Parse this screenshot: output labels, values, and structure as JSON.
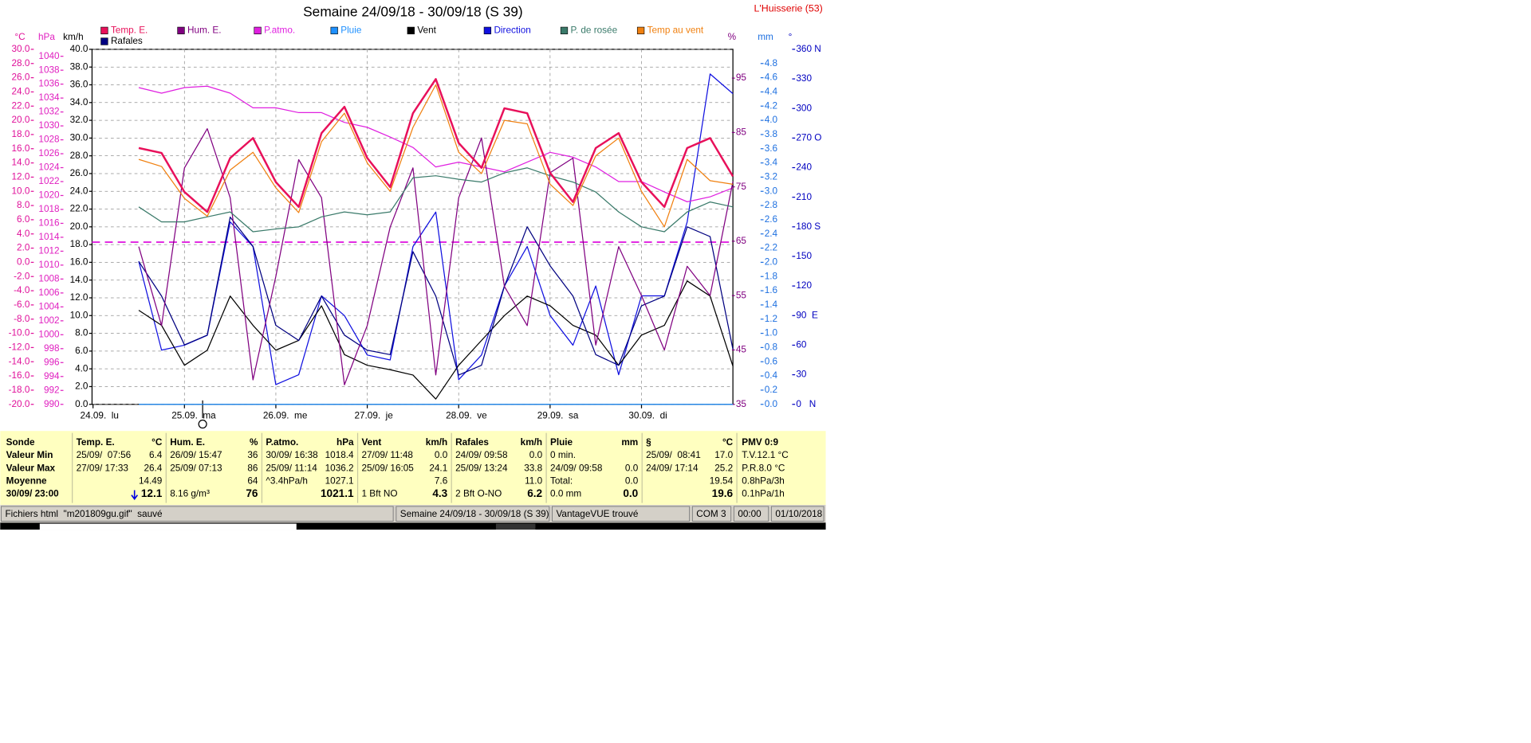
{
  "header": {
    "title": "Semaine 24/09/18 - 30/09/18 (S 39)",
    "station": "L'Huisserie (53)"
  },
  "chart_data": {
    "type": "line",
    "categories": [
      "24.09.  lu",
      null,
      null,
      null,
      "25.09.  ma",
      null,
      null,
      null,
      "26.09.  me",
      null,
      null,
      null,
      "27.09.  je",
      null,
      null,
      null,
      "28.09.  ve",
      null,
      null,
      null,
      "29.09.  sa",
      null,
      null,
      null,
      "30.09.  di",
      null,
      null,
      null,
      null
    ],
    "grid": true,
    "axes": {
      "temp": {
        "label": "°C",
        "color": "#e0109a",
        "lim": [
          -20,
          30
        ],
        "ticks": [
          {
            "value": -20,
            "label": "-20.0"
          },
          {
            "value": -18,
            "label": "-18.0"
          },
          {
            "value": -16,
            "label": "-16.0"
          },
          {
            "value": -14,
            "label": "-14.0"
          },
          {
            "value": -12,
            "label": "-12.0"
          },
          {
            "value": -10,
            "label": "-10.0"
          },
          {
            "value": -8,
            "label": "-8.0"
          },
          {
            "value": -6,
            "label": "-6.0"
          },
          {
            "value": -4,
            "label": "-4.0"
          },
          {
            "value": -2,
            "label": "-2.0"
          },
          {
            "value": 0,
            "label": "0.0"
          },
          {
            "value": 2,
            "label": "2.0"
          },
          {
            "value": 4,
            "label": "4.0"
          },
          {
            "value": 6,
            "label": "6.0"
          },
          {
            "value": 8,
            "label": "8.0"
          },
          {
            "value": 10,
            "label": "10.0"
          },
          {
            "value": 12,
            "label": "12.0"
          },
          {
            "value": 14,
            "label": "14.0"
          },
          {
            "value": 16,
            "label": "16.0"
          },
          {
            "value": 18,
            "label": "18.0"
          },
          {
            "value": 20,
            "label": "20.0"
          },
          {
            "value": 22,
            "label": "22.0"
          },
          {
            "value": 24,
            "label": "24.0"
          },
          {
            "value": 26,
            "label": "26.0"
          },
          {
            "value": 28,
            "label": "28.0"
          },
          {
            "value": 30,
            "label": "30.0"
          }
        ]
      },
      "press": {
        "label": "hPa",
        "color": "#e020c0",
        "lim": [
          990,
          1041
        ],
        "ticks": [
          990,
          992,
          994,
          996,
          998,
          1000,
          1002,
          1004,
          1006,
          1008,
          1010,
          1012,
          1014,
          1016,
          1018,
          1020,
          1022,
          1024,
          1026,
          1028,
          1030,
          1032,
          1034,
          1036,
          1038,
          1040
        ]
      },
      "wind": {
        "label": "km/h",
        "color": "#000000",
        "lim": [
          0,
          40
        ],
        "ticks": [
          {
            "value": 0,
            "label": "0.0"
          },
          {
            "value": 2,
            "label": "2.0"
          },
          {
            "value": 4,
            "label": "4.0"
          },
          {
            "value": 6,
            "label": "6.0"
          },
          {
            "value": 8,
            "label": "8.0"
          },
          {
            "value": 10,
            "label": "10.0"
          },
          {
            "value": 12,
            "label": "12.0"
          },
          {
            "value": 14,
            "label": "14.0"
          },
          {
            "value": 16,
            "label": "16.0"
          },
          {
            "value": 18,
            "label": "18.0"
          },
          {
            "value": 20,
            "label": "20.0"
          },
          {
            "value": 22,
            "label": "22.0"
          },
          {
            "value": 24,
            "label": "24.0"
          },
          {
            "value": 26,
            "label": "26.0"
          },
          {
            "value": 28,
            "label": "28.0"
          },
          {
            "value": 30,
            "label": "30.0"
          },
          {
            "value": 32,
            "label": "32.0"
          },
          {
            "value": 34,
            "label": "34.0"
          },
          {
            "value": 36,
            "label": "36.0"
          },
          {
            "value": 38,
            "label": "38.0"
          },
          {
            "value": 40,
            "label": "40.0"
          }
        ]
      },
      "hum": {
        "label": "%",
        "color": "#800080",
        "lim": [
          35,
          100.3
        ],
        "ticks": [
          35,
          45,
          55,
          65,
          75,
          85,
          95
        ]
      },
      "rain": {
        "label": "mm",
        "color": "#1e70e0",
        "lim": [
          0,
          5
        ],
        "ticks": [
          {
            "value": 0,
            "label": "0.0"
          },
          {
            "value": 0.2,
            "label": "0.2"
          },
          {
            "value": 0.4,
            "label": "0.4"
          },
          {
            "value": 0.6,
            "label": "0.6"
          },
          {
            "value": 0.8,
            "label": "0.8"
          },
          {
            "value": 1,
            "label": "1.0"
          },
          {
            "value": 1.2,
            "label": "1.2"
          },
          {
            "value": 1.4,
            "label": "1.4"
          },
          {
            "value": 1.6,
            "label": "1.6"
          },
          {
            "value": 1.8,
            "label": "1.8"
          },
          {
            "value": 2,
            "label": "2.0"
          },
          {
            "value": 2.2,
            "label": "2.2"
          },
          {
            "value": 2.4,
            "label": "2.4"
          },
          {
            "value": 2.6,
            "label": "2.6"
          },
          {
            "value": 2.8,
            "label": "2.8"
          },
          {
            "value": 3,
            "label": "3.0"
          },
          {
            "value": 3.2,
            "label": "3.2"
          },
          {
            "value": 3.4,
            "label": "3.4"
          },
          {
            "value": 3.6,
            "label": "3.6"
          },
          {
            "value": 3.8,
            "label": "3.8"
          },
          {
            "value": 4,
            "label": "4.0"
          },
          {
            "value": 4.2,
            "label": "4.2"
          },
          {
            "value": 4.4,
            "label": "4.4"
          },
          {
            "value": 4.6,
            "label": "4.6"
          },
          {
            "value": 4.8,
            "label": "4.8"
          }
        ]
      },
      "dir": {
        "label": "°",
        "color": "#0000c0",
        "lim": [
          0,
          360
        ],
        "ticks": [
          {
            "value": 0,
            "label": "0   N"
          },
          30,
          60,
          {
            "value": 90,
            "label": "90  E"
          },
          120,
          150,
          {
            "value": 180,
            "label": "180 S"
          },
          210,
          240,
          {
            "value": 270,
            "label": "270 O"
          },
          300,
          330,
          {
            "value": 360,
            "label": "360 N"
          }
        ]
      }
    },
    "series": [
      {
        "name": "Temp. E.",
        "color": "#e8105a",
        "axis": "temp",
        "values": [
          null,
          null,
          16.1,
          15.4,
          9.9,
          7.1,
          14.7,
          17.5,
          11.3,
          7.8,
          18.2,
          21.9,
          14.7,
          10.6,
          21,
          25.8,
          16.8,
          13.3,
          21.7,
          21,
          12.6,
          8.5,
          16.1,
          18.2,
          11.3,
          7.8,
          16.1,
          17.5,
          12.1
        ]
      },
      {
        "name": "Hum. E.",
        "color": "#800080",
        "axis": "hum",
        "values": [
          null,
          null,
          64,
          49.5,
          78.5,
          85.7,
          73,
          39.5,
          58.5,
          80,
          73,
          38.6,
          49.5,
          67.6,
          78.5,
          40.4,
          73,
          84,
          56.7,
          49.5,
          77.6,
          80.3,
          45.9,
          64,
          55,
          45,
          60.4,
          55,
          76
        ]
      },
      {
        "name": "P.atmo.",
        "color": "#e020e0",
        "axis": "press",
        "values": [
          null,
          null,
          1035.5,
          1034.7,
          1035.5,
          1035.7,
          1034.7,
          1032.6,
          1032.6,
          1031.9,
          1031.9,
          1030.5,
          1029.8,
          1028.4,
          1026.9,
          1024.1,
          1024.8,
          1024.1,
          1023.4,
          1024.8,
          1026.2,
          1025.5,
          1024.1,
          1022,
          1022,
          1020.5,
          1019.1,
          1019.8,
          1021.1
        ]
      },
      {
        "name": "Pluie",
        "color": "#1e90ff",
        "axis": "rain",
        "values": [
          null,
          null,
          0,
          0,
          0,
          0,
          0,
          0,
          0,
          0,
          0,
          0,
          0,
          0,
          0,
          0,
          0,
          0,
          0,
          0,
          0,
          0,
          0,
          0,
          0,
          0,
          0,
          0,
          0
        ]
      },
      {
        "name": "Vent",
        "color": "#000000",
        "axis": "wind",
        "values": [
          null,
          null,
          10.6,
          8.9,
          4.4,
          6.1,
          12.2,
          8.9,
          6.1,
          7.2,
          11.1,
          5.6,
          4.4,
          3.9,
          3.3,
          0.6,
          4.4,
          7.2,
          10,
          12.2,
          11.1,
          8.9,
          7.8,
          4.4,
          7.8,
          8.9,
          13.9,
          12.2,
          4.3
        ]
      },
      {
        "name": "Direction",
        "color": "#1010e0",
        "axis": "dir",
        "values": [
          null,
          null,
          145,
          55,
          60,
          70,
          185,
          160,
          20,
          30,
          110,
          90,
          50,
          45,
          160,
          195,
          25,
          50,
          120,
          160,
          90,
          60,
          120,
          30,
          110,
          110,
          185,
          335,
          315
        ]
      },
      {
        "name": "P. de rosée",
        "color": "#3a7a6a",
        "axis": "temp",
        "values": [
          null,
          null,
          7.8,
          5.7,
          5.7,
          6.4,
          7.1,
          4.3,
          4.7,
          5,
          6.4,
          7.1,
          6.7,
          7.1,
          11.9,
          12.2,
          11.7,
          11.3,
          12.6,
          13.3,
          12.2,
          11.3,
          9.9,
          7.1,
          5,
          4.3,
          7.1,
          8.5,
          7.8
        ]
      },
      {
        "name": "Temp au vent",
        "color": "#f08010",
        "axis": "temp",
        "values": [
          null,
          null,
          14.5,
          13.5,
          9,
          6.5,
          13,
          15.5,
          10.5,
          7,
          17,
          21,
          14,
          10,
          19,
          25,
          15.5,
          12.5,
          20,
          19.5,
          11,
          8,
          15,
          17.5,
          10,
          5,
          14.5,
          11.5,
          11
        ]
      },
      {
        "name": "Rafales",
        "color": "#000080",
        "axis": "wind",
        "values": [
          null,
          null,
          16.1,
          12.2,
          6.7,
          7.8,
          21.1,
          17.8,
          8.9,
          7.2,
          12.2,
          7.8,
          6.1,
          5.6,
          17.2,
          12.2,
          3.3,
          4.4,
          13.3,
          20,
          15.6,
          12.2,
          5.6,
          4.4,
          11.1,
          12.2,
          20,
          18.9,
          6.2
        ]
      }
    ]
  },
  "table": {
    "row_labels": [
      "Sonde",
      "Valeur Min",
      "Valeur Max",
      "Moyenne",
      "30/09/ 23:00"
    ],
    "columns": [
      {
        "title": "Temp. E.",
        "unit": "°C",
        "rows": [
          {
            "left": "25/09/  07:56",
            "right": "6.4"
          },
          {
            "left": "27/09/ 17:33",
            "right": "26.4"
          },
          {
            "right": "14.49"
          },
          {
            "right": "12.1"
          }
        ]
      },
      {
        "title": "Hum. E.",
        "unit": "%",
        "rows": [
          {
            "left": "26/09/ 15:47",
            "right": "36"
          },
          {
            "left": "25/09/ 07:13",
            "right": "86"
          },
          {
            "right": "64"
          },
          {
            "left": "8.16 g/m³",
            "right": "76"
          }
        ]
      },
      {
        "title": "P.atmo.",
        "unit": "hPa",
        "rows": [
          {
            "left": "30/09/ 16:38",
            "right": "1018.4"
          },
          {
            "left": "25/09/ 11:14",
            "right": "1036.2"
          },
          {
            "left": "^3.4hPa/h",
            "right": "1027.1"
          },
          {
            "right": "1021.1"
          }
        ]
      },
      {
        "title": "Vent",
        "unit": "km/h",
        "rows": [
          {
            "left": "27/09/ 11:48",
            "right": "0.0"
          },
          {
            "left": "25/09/ 16:05",
            "right": "24.1"
          },
          {
            "right": "7.6"
          },
          {
            "left": "1 Bft NO",
            "right": "4.3"
          }
        ]
      },
      {
        "title": "Rafales",
        "unit": "km/h",
        "rows": [
          {
            "left": "24/09/ 09:58",
            "right": "0.0"
          },
          {
            "left": "25/09/ 13:24",
            "right": "33.8"
          },
          {
            "right": "11.0"
          },
          {
            "left": "2 Bft O-NO",
            "right": "6.2"
          }
        ]
      },
      {
        "title": "Pluie",
        "unit": "mm",
        "rows": [
          {
            "left": "0 min."
          },
          {
            "left": "24/09/ 09:58",
            "right": "0.0"
          },
          {
            "left": "Total:",
            "right": "0.0"
          },
          {
            "left": "0.0 mm",
            "right": "0.0"
          }
        ]
      },
      {
        "title": "§",
        "unit": "°C",
        "rows": [
          {
            "left": "25/09/  08:41",
            "right": "17.0"
          },
          {
            "left": "24/09/ 17:14",
            "right": "25.2"
          },
          {
            "right": "19.54"
          },
          {
            "right": "19.6"
          }
        ]
      }
    ],
    "pmv": {
      "title": "PMV 0:9",
      "lines": [
        "T.V.12.1 °C",
        "P.R.8.0 °C",
        "0.8hPa/3h",
        "0.1hPa/1h"
      ]
    }
  },
  "status_bar": [
    "Fichiers html  \"m201809gu.gif\"  sauvé",
    "Semaine 24/09/18 - 30/09/18 (S 39)",
    "VantageVUE trouvé",
    "COM 3",
    "00:00",
    "01/10/2018"
  ]
}
